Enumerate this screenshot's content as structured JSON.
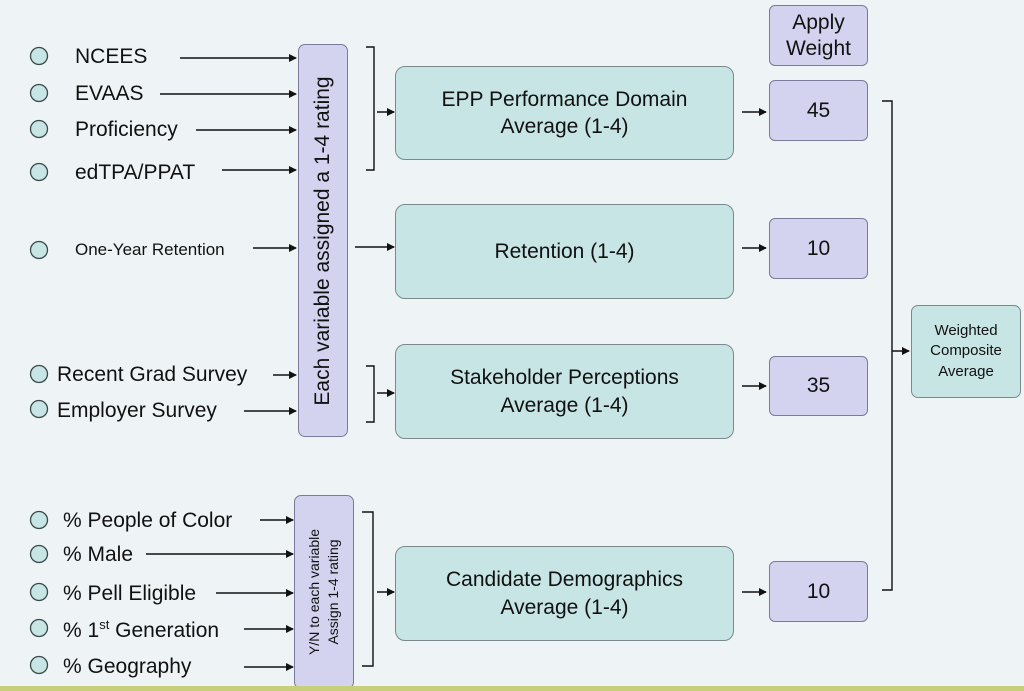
{
  "inputs": {
    "ncees": "NCEES",
    "evaas": "EVAAS",
    "proficiency": "Proficiency",
    "edtpa": "edTPA/PPAT",
    "retention": "One-Year Retention",
    "recent_grad": "Recent Grad Survey",
    "employer": "Employer Survey",
    "poc": "% People of Color",
    "male": "% Male",
    "pell": "% Pell Eligible",
    "first_gen_prefix": "% 1",
    "first_gen_sup": "st",
    "first_gen_suffix": " Generation",
    "geography": "% Geography"
  },
  "rating_box": "Each variable assigned a 1-4 rating",
  "demo_rating_box": {
    "line1": "Y/N to each variable",
    "line2": "Assign 1-4 rating"
  },
  "domains": {
    "epp": {
      "line1": "EPP Performance Domain",
      "line2": "Average (1-4)"
    },
    "retention": "Retention (1-4)",
    "stakeholder": {
      "line1": "Stakeholder Perceptions",
      "line2": "Average (1-4)"
    },
    "demographics": {
      "line1": "Candidate Demographics",
      "line2": "Average (1-4)"
    }
  },
  "apply_weight": {
    "line1": "Apply",
    "line2": "Weight"
  },
  "weights": {
    "epp": "45",
    "retention": "10",
    "stakeholder": "35",
    "demographics": "10"
  },
  "composite": {
    "line1": "Weighted",
    "line2": "Composite",
    "line3": "Average"
  },
  "colors": {
    "background": "#eef4f5",
    "domain_fill": "#c7e5e4",
    "weight_fill": "#d4d3ef",
    "bottom_bar": "#c8cf7a"
  }
}
